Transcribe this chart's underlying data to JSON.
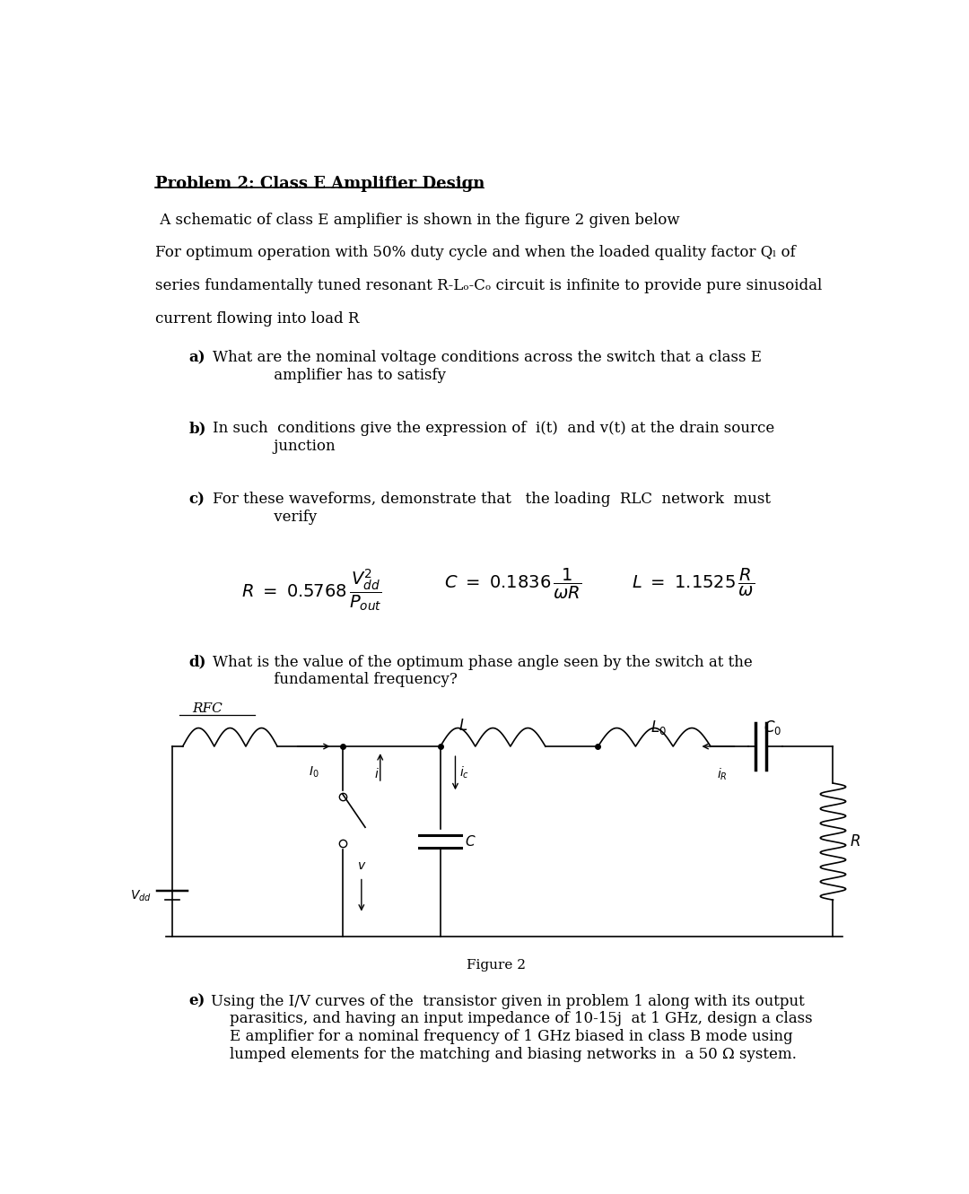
{
  "title": "Problem 2: Class E Amplifier Design",
  "bg_color": "#ffffff",
  "text_color": "#000000",
  "fig_width": 10.8,
  "fig_height": 13.31,
  "body_lines": [
    " A schematic of class E amplifier is shown in the figure 2 given below",
    "For optimum operation with 50% duty cycle and when the loaded quality factor Qₗ of",
    "series fundamentally tuned resonant R-Lₒ-Cₒ circuit is infinite to provide pure sinusoidal",
    "current flowing into load R"
  ],
  "font_size_title": 13,
  "font_size_body": 12,
  "font_size_formula": 14,
  "figure_caption": "Figure 2"
}
